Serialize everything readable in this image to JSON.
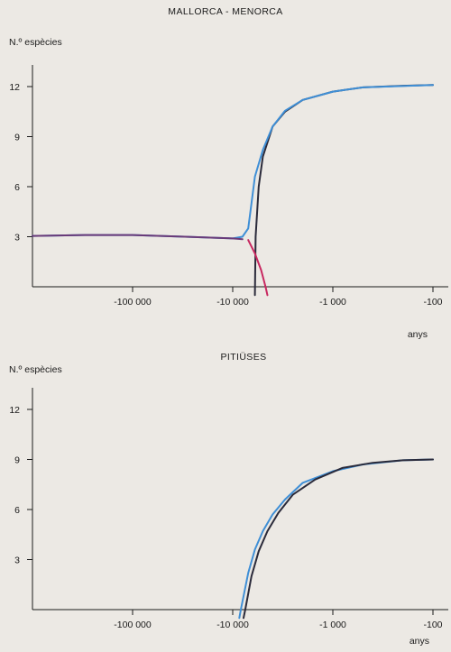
{
  "chart_data": [
    {
      "type": "line",
      "title": "MALLORCA - MENORCA",
      "ylabel": "N.º espècies",
      "xlabel": "anys",
      "x_scale": "log-reversed",
      "x_ticks": [
        -100000,
        -10000,
        -1000,
        -100
      ],
      "x_tick_labels": [
        "-100 000",
        "-10 000",
        "-1 000",
        "-100"
      ],
      "xlim": [
        -1000000,
        -100
      ],
      "y_ticks": [
        3,
        6,
        9,
        12
      ],
      "ylim": [
        0,
        12.8
      ],
      "grid": false,
      "series": [
        {
          "color": "#2a2a3a",
          "points": [
            [
              -6000,
              -0.5
            ],
            [
              -5900,
              3.0
            ],
            [
              -5500,
              6.0
            ],
            [
              -5000,
              7.8
            ],
            [
              -4000,
              9.6
            ],
            [
              -3000,
              10.5
            ],
            [
              -2000,
              11.2
            ],
            [
              -1000,
              11.7
            ],
            [
              -500,
              11.95
            ],
            [
              -200,
              12.05
            ],
            [
              -100,
              12.1
            ]
          ]
        },
        {
          "color": "#3f8fd6",
          "points": [
            [
              -1000000,
              3.05
            ],
            [
              -300000,
              3.1
            ],
            [
              -100000,
              3.1
            ],
            [
              -30000,
              3.0
            ],
            [
              -10000,
              2.9
            ],
            [
              -8000,
              3.0
            ],
            [
              -7000,
              3.5
            ],
            [
              -6500,
              5.0
            ],
            [
              -6000,
              6.6
            ],
            [
              -5000,
              8.2
            ],
            [
              -4000,
              9.6
            ],
            [
              -3000,
              10.55
            ],
            [
              -2000,
              11.2
            ],
            [
              -1000,
              11.7
            ],
            [
              -500,
              11.95
            ],
            [
              -100,
              12.1
            ]
          ]
        },
        {
          "color": "#c82860",
          "points": [
            [
              -7000,
              2.8
            ],
            [
              -6000,
              2.0
            ],
            [
              -5200,
              1.0
            ],
            [
              -4700,
              0.0
            ],
            [
              -4500,
              -0.5
            ]
          ]
        },
        {
          "color": "#6a3a78",
          "points": [
            [
              -1000000,
              3.05
            ],
            [
              -300000,
              3.1
            ],
            [
              -100000,
              3.1
            ],
            [
              -30000,
              3.0
            ],
            [
              -10000,
              2.9
            ],
            [
              -8000,
              2.85
            ]
          ]
        }
      ]
    },
    {
      "type": "line",
      "title": "PITIÜSES",
      "ylabel": "N.º espècies",
      "xlabel": "anys",
      "x_scale": "log-reversed",
      "x_ticks": [
        -100000,
        -10000,
        -1000,
        -100
      ],
      "x_tick_labels": [
        "-100 000",
        "-10 000",
        "-1 000",
        "-100"
      ],
      "xlim": [
        -1000000,
        -100
      ],
      "y_ticks": [
        3,
        6,
        9,
        12
      ],
      "ylim": [
        0,
        12.8
      ],
      "grid": false,
      "series": [
        {
          "color": "#3f8fd6",
          "points": [
            [
              -8600,
              -0.5
            ],
            [
              -8300,
              0.0
            ],
            [
              -7000,
              2.2
            ],
            [
              -6000,
              3.6
            ],
            [
              -5000,
              4.7
            ],
            [
              -4000,
              5.7
            ],
            [
              -3000,
              6.6
            ],
            [
              -2000,
              7.6
            ],
            [
              -1000,
              8.3
            ],
            [
              -500,
              8.7
            ],
            [
              -200,
              8.95
            ],
            [
              -100,
              9.0
            ]
          ]
        },
        {
          "color": "#2a2a3a",
          "points": [
            [
              -7800,
              -0.5
            ],
            [
              -7500,
              0.0
            ],
            [
              -6500,
              2.0
            ],
            [
              -5500,
              3.5
            ],
            [
              -4500,
              4.7
            ],
            [
              -3500,
              5.8
            ],
            [
              -2500,
              6.9
            ],
            [
              -1500,
              7.8
            ],
            [
              -800,
              8.5
            ],
            [
              -400,
              8.8
            ],
            [
              -200,
              8.95
            ],
            [
              -100,
              9.0
            ]
          ]
        }
      ]
    }
  ]
}
